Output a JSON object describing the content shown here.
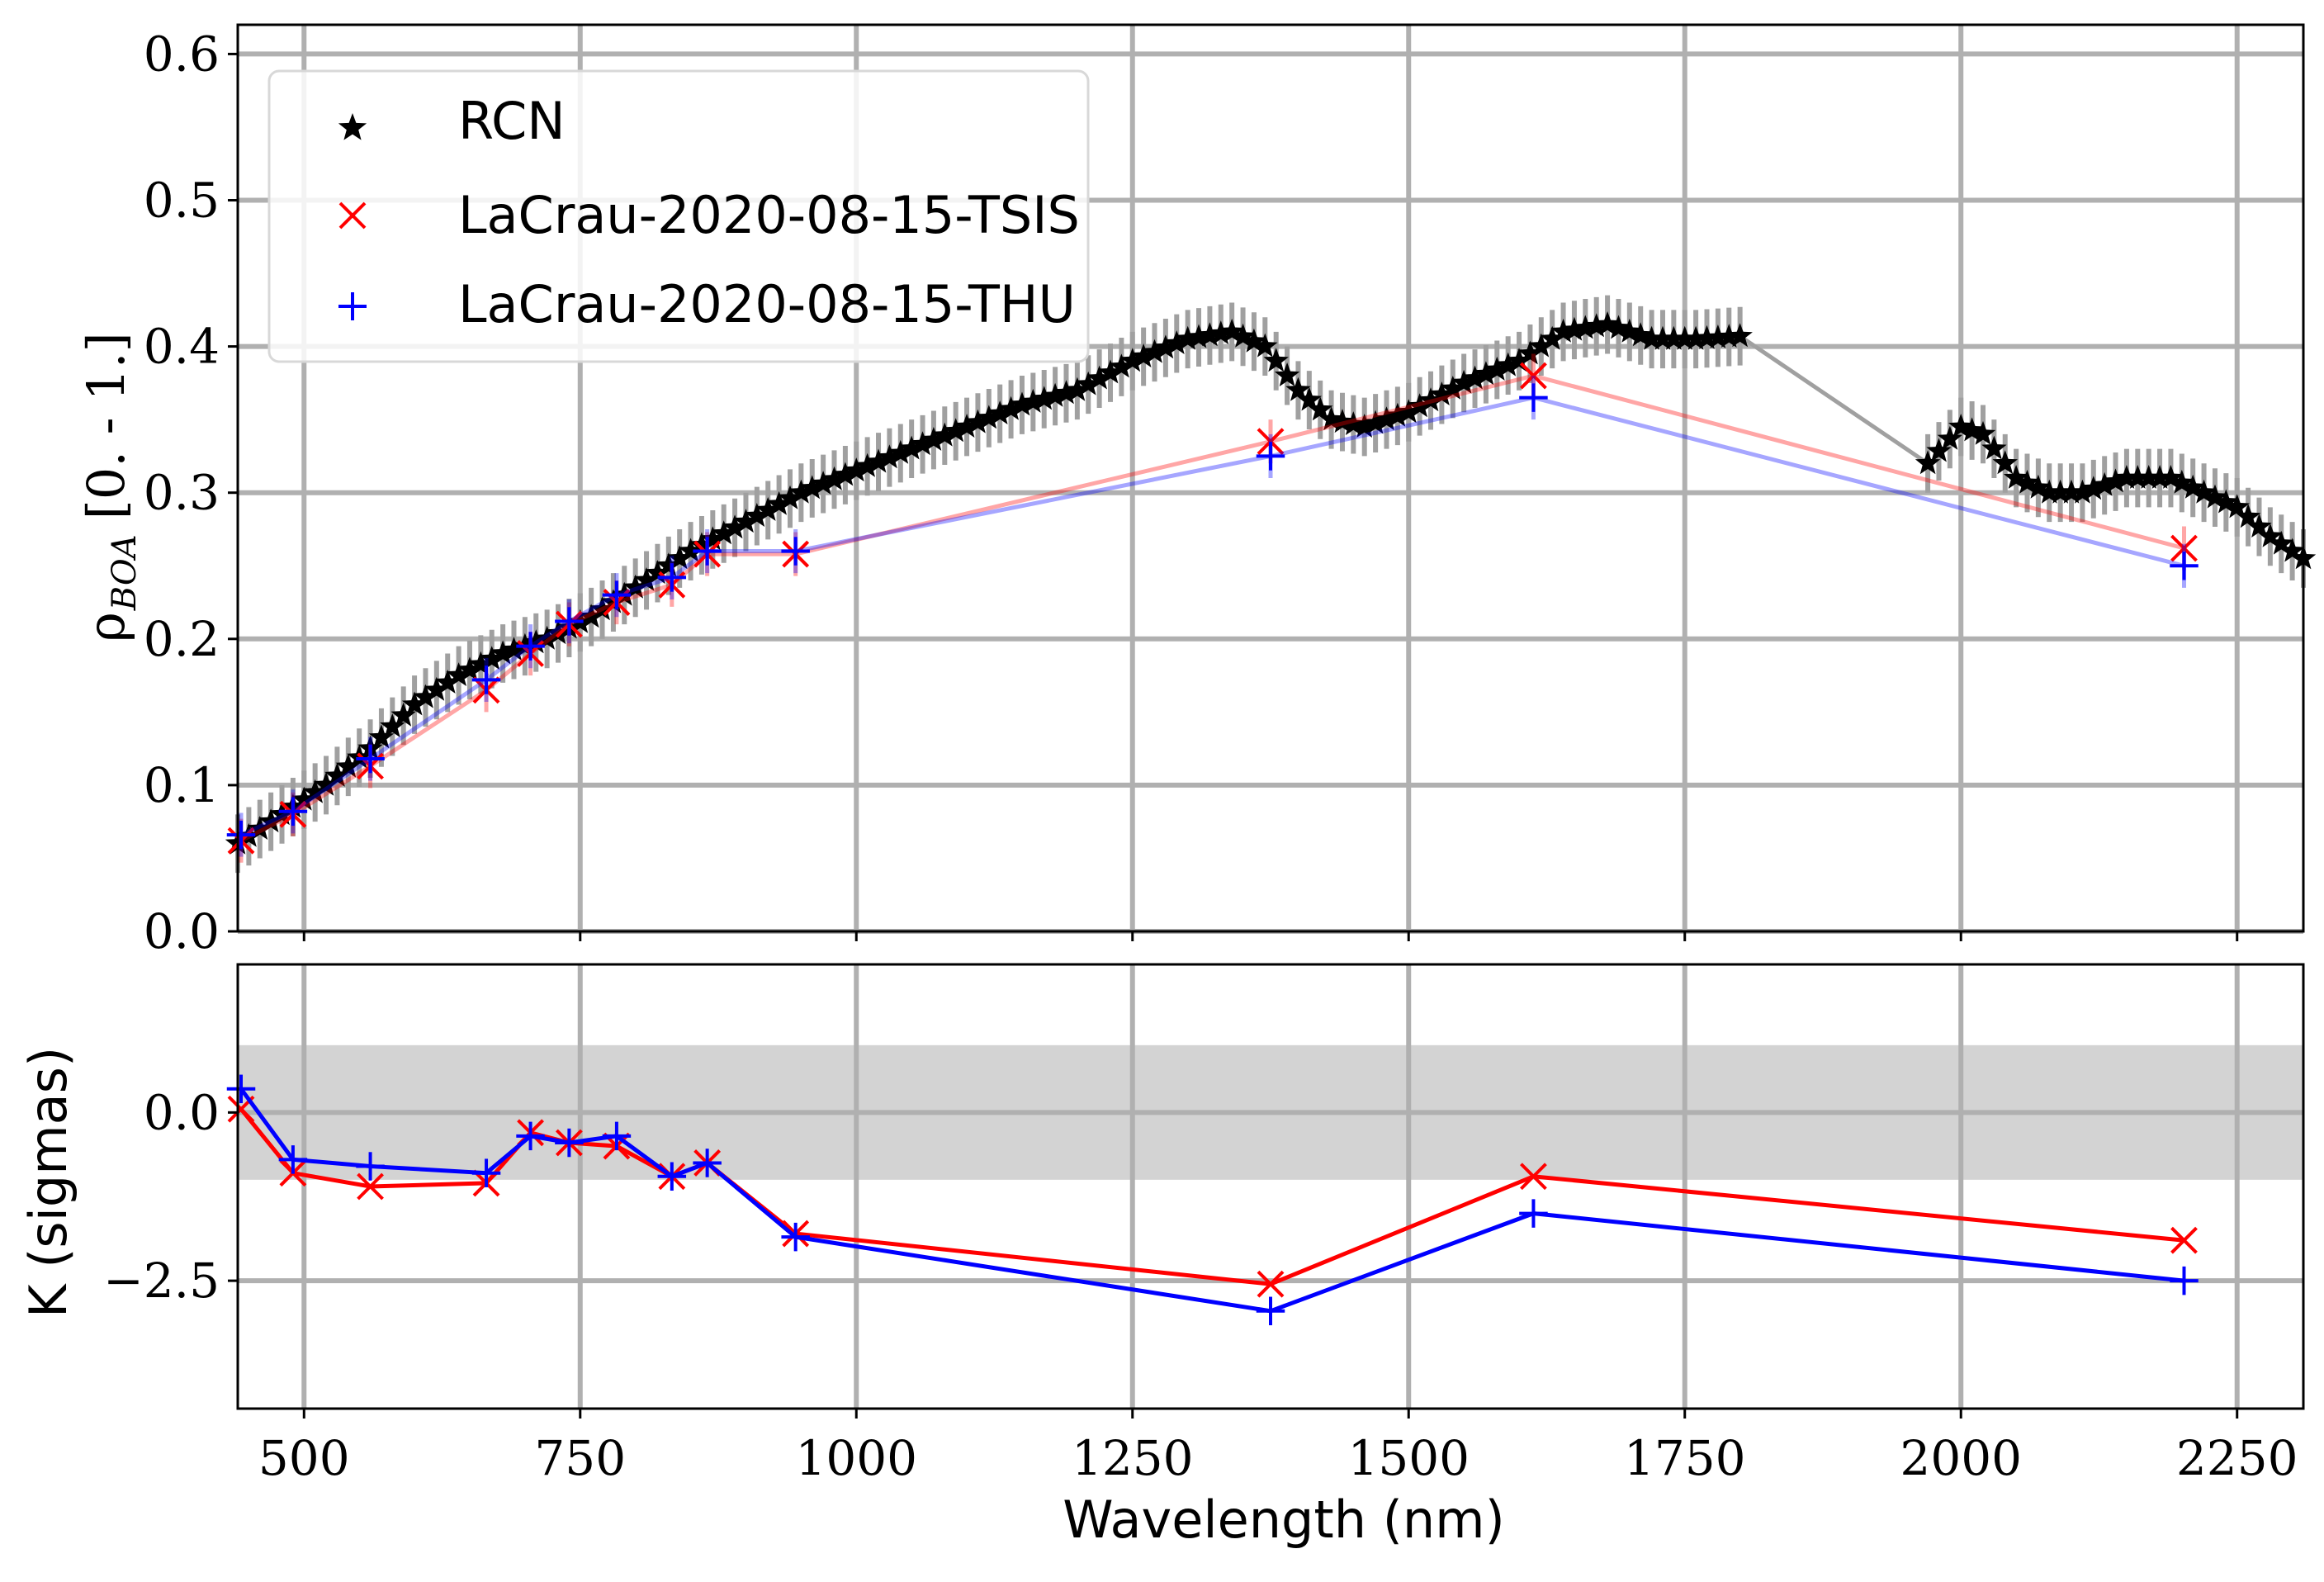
{
  "chart_data": [
    {
      "type": "scatter",
      "panel": "top",
      "ylabel_symbol": "ρ",
      "ylabel_subscript": "BOA",
      "ylabel_range": "[0. - 1.]",
      "xlabel": "",
      "xlim": [
        440,
        2310
      ],
      "ylim": [
        0.0,
        0.62
      ],
      "grid": true,
      "legend_placement": "top-left",
      "x_ticks": [
        500,
        750,
        1000,
        1250,
        1500,
        1750,
        2000,
        2250
      ],
      "y_ticks": [
        0.0,
        0.1,
        0.2,
        0.3,
        0.4,
        0.5,
        0.6
      ],
      "y_tick_labels": [
        "0.0",
        "0.1",
        "0.2",
        "0.3",
        "0.4",
        "0.5",
        "0.6"
      ],
      "series": [
        {
          "name": "RCN",
          "marker": "star",
          "color": "#000000",
          "error_color": "#a0a0a0",
          "error": 0.02,
          "segments": [
            {
              "x": [
                440,
                480,
                520,
                560,
                600,
                640,
                680,
                720,
                760,
                800,
                850,
                900,
                950,
                1000,
                1050,
                1100,
                1150,
                1200,
                1250,
                1300,
                1340,
                1370,
                1400,
                1430,
                1460,
                1500,
                1550,
                1600,
                1640,
                1680,
                1720,
                1760,
                1800
              ],
              "y": [
                0.06,
                0.08,
                0.1,
                0.125,
                0.155,
                0.175,
                0.19,
                0.2,
                0.215,
                0.235,
                0.26,
                0.28,
                0.3,
                0.315,
                0.33,
                0.345,
                0.36,
                0.37,
                0.39,
                0.405,
                0.41,
                0.4,
                0.37,
                0.35,
                0.345,
                0.355,
                0.375,
                0.39,
                0.41,
                0.415,
                0.405,
                0.405,
                0.407
              ]
            },
            {
              "x": [
                1970,
                2000,
                2020,
                2050,
                2080,
                2110,
                2150,
                2190,
                2220,
                2250,
                2280,
                2310
              ],
              "y": [
                0.32,
                0.345,
                0.34,
                0.31,
                0.3,
                0.3,
                0.31,
                0.31,
                0.3,
                0.29,
                0.27,
                0.255
              ]
            }
          ],
          "connector": {
            "x": [
              1800,
              1970
            ],
            "y": [
              0.407,
              0.32
            ]
          }
        },
        {
          "name": "LaCrau-2020-08-15-TSIS",
          "marker": "x",
          "color": "#ff0000",
          "error": 0.015,
          "x": [
            443,
            490,
            560,
            665,
            705,
            740,
            783,
            833,
            865,
            945,
            1375,
            1613,
            2202
          ],
          "y": [
            0.062,
            0.08,
            0.113,
            0.165,
            0.19,
            0.21,
            0.225,
            0.237,
            0.258,
            0.258,
            0.335,
            0.38,
            0.262
          ]
        },
        {
          "name": "LaCrau-2020-08-15-THU",
          "marker": "plus",
          "color": "#0000ff",
          "error": 0.015,
          "x": [
            443,
            490,
            560,
            665,
            705,
            740,
            783,
            833,
            865,
            945,
            1375,
            1613,
            2202
          ],
          "y": [
            0.066,
            0.082,
            0.118,
            0.172,
            0.195,
            0.212,
            0.23,
            0.242,
            0.26,
            0.26,
            0.325,
            0.365,
            0.25
          ]
        }
      ]
    },
    {
      "type": "line",
      "panel": "bottom",
      "xlabel": "Wavelength (nm)",
      "ylabel": "K (sigmas)",
      "xlim": [
        440,
        2310
      ],
      "ylim": [
        -4.4,
        2.2
      ],
      "grid": true,
      "band": {
        "from": -1.0,
        "to": 1.0,
        "color": "#d3d3d3"
      },
      "x_ticks": [
        500,
        750,
        1000,
        1250,
        1500,
        1750,
        2000,
        2250
      ],
      "x_tick_labels": [
        "500",
        "750",
        "1000",
        "1250",
        "1500",
        "1750",
        "2000",
        "2250"
      ],
      "y_ticks": [
        0.0,
        -2.5
      ],
      "y_tick_labels": [
        "0.0",
        "−2.5"
      ],
      "series": [
        {
          "name": "LaCrau-2020-08-15-TSIS",
          "marker": "x",
          "color": "#ff0000",
          "x": [
            443,
            490,
            560,
            665,
            705,
            740,
            783,
            833,
            865,
            945,
            1375,
            1613,
            2202
          ],
          "y": [
            0.05,
            -0.9,
            -1.1,
            -1.05,
            -0.3,
            -0.45,
            -0.5,
            -0.95,
            -0.75,
            -1.8,
            -2.55,
            -0.95,
            -1.9
          ]
        },
        {
          "name": "LaCrau-2020-08-15-THU",
          "marker": "plus",
          "color": "#0000ff",
          "x": [
            443,
            490,
            560,
            665,
            705,
            740,
            783,
            833,
            865,
            945,
            1375,
            1613,
            2202
          ],
          "y": [
            0.35,
            -0.7,
            -0.8,
            -0.9,
            -0.35,
            -0.45,
            -0.35,
            -0.95,
            -0.75,
            -1.85,
            -2.95,
            -1.5,
            -2.5
          ]
        }
      ]
    }
  ]
}
